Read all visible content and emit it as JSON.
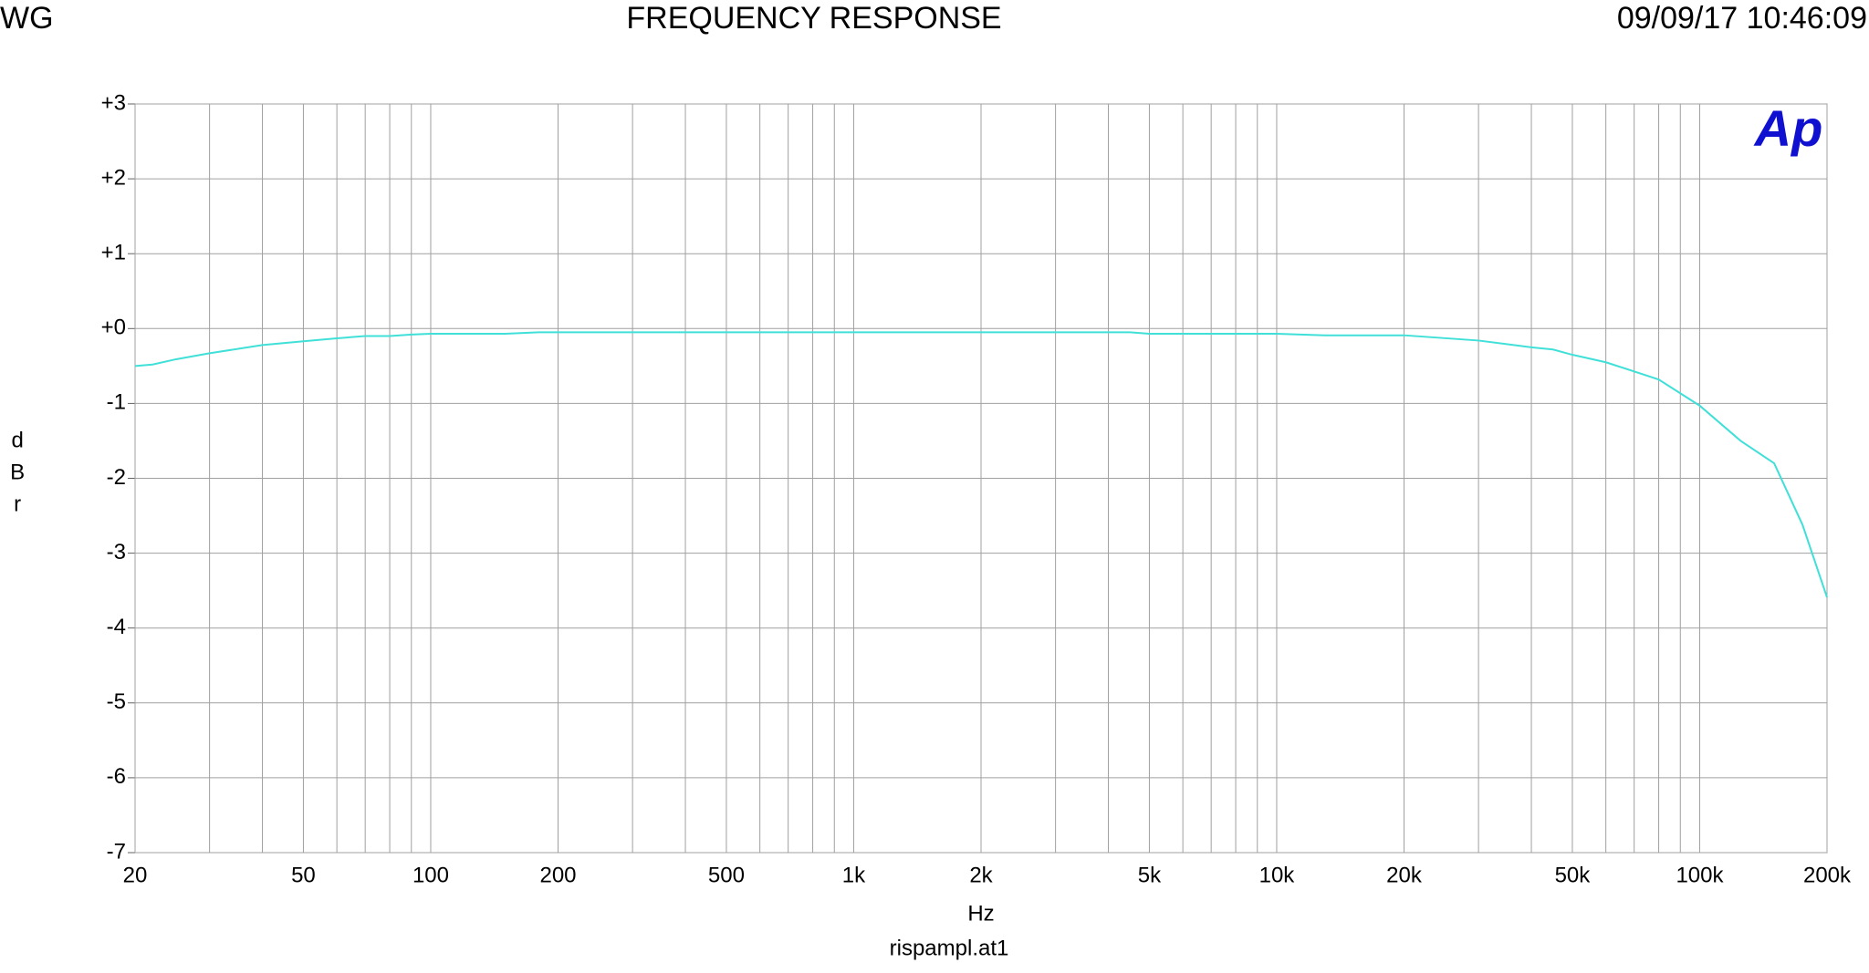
{
  "chart_data": {
    "type": "line",
    "header_left": "WG",
    "title": "FREQUENCY RESPONSE",
    "timestamp": "09/09/17 10:46:09",
    "logo": "Ap",
    "ylabel": "dBr",
    "xlabel": "Hz",
    "footer": "rispampl.at1",
    "xscale": "log",
    "grid": true,
    "color": "#40e0d8",
    "x": [
      20,
      22,
      25,
      30,
      40,
      50,
      60,
      70,
      80,
      90,
      100,
      150,
      180,
      200,
      500,
      1000,
      2000,
      4500,
      5000,
      10000,
      13000,
      20000,
      30000,
      40000,
      45000,
      50000,
      60000,
      80000,
      100000,
      125000,
      150000,
      175000,
      200000
    ],
    "values": [
      -0.5,
      -0.48,
      -0.41,
      -0.33,
      -0.22,
      -0.17,
      -0.13,
      -0.1,
      -0.1,
      -0.08,
      -0.07,
      -0.07,
      -0.05,
      -0.05,
      -0.05,
      -0.05,
      -0.05,
      -0.05,
      -0.07,
      -0.07,
      -0.09,
      -0.09,
      -0.16,
      -0.25,
      -0.28,
      -0.35,
      -0.45,
      -0.68,
      -1.03,
      -1.5,
      -1.8,
      -2.62,
      -3.59
    ],
    "xlim": [
      20,
      200000
    ],
    "xticks": [
      20,
      50,
      100,
      200,
      500,
      {
        "value": 1000,
        "label": "1k"
      },
      {
        "value": 2000,
        "label": "2k"
      },
      {
        "value": 5000,
        "label": "5k"
      },
      {
        "value": 10000,
        "label": "10k"
      },
      {
        "value": 20000,
        "label": "20k"
      },
      {
        "value": 50000,
        "label": "50k"
      },
      {
        "value": 100000,
        "label": "100k"
      },
      {
        "value": 200000,
        "label": "200k"
      }
    ],
    "xminor": [
      30,
      40,
      60,
      70,
      80,
      90,
      300,
      400,
      600,
      700,
      800,
      900,
      3000,
      4000,
      6000,
      7000,
      8000,
      9000,
      30000,
      40000,
      60000,
      70000,
      80000,
      90000
    ],
    "ylim": [
      -7,
      3
    ],
    "yticks": [
      {
        "value": 3,
        "label": "+3"
      },
      {
        "value": 2,
        "label": "+2"
      },
      {
        "value": 1,
        "label": "+1"
      },
      {
        "value": 0,
        "label": "+0"
      },
      -1,
      -2,
      -3,
      -4,
      -5,
      -6,
      -7
    ]
  }
}
